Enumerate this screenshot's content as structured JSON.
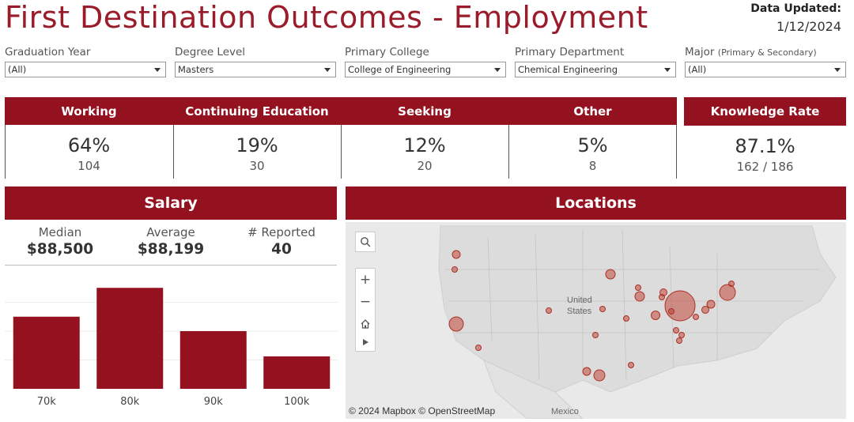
{
  "header": {
    "title": "First Destination Outcomes - Employment",
    "updated_label": "Data Updated:",
    "updated_date": "1/12/2024"
  },
  "filters": [
    {
      "label": "Graduation Year",
      "sub": "",
      "value": "(All)"
    },
    {
      "label": "Degree Level",
      "sub": "",
      "value": "Masters"
    },
    {
      "label": "Primary College",
      "sub": "",
      "value": "College of Engineering"
    },
    {
      "label": "Primary Department",
      "sub": "",
      "value": "Chemical Engineering"
    },
    {
      "label": "Major",
      "sub": "(Primary & Secondary)",
      "value": "(All)"
    }
  ],
  "kpis": [
    {
      "label": "Working",
      "pct": "64%",
      "count": "104"
    },
    {
      "label": "Continuing Education",
      "pct": "19%",
      "count": "30"
    },
    {
      "label": "Seeking",
      "pct": "12%",
      "count": "20"
    },
    {
      "label": "Other",
      "pct": "5%",
      "count": "8"
    }
  ],
  "knowledge": {
    "label": "Knowledge Rate",
    "pct": "87.1%",
    "count": "162 / 186"
  },
  "salary": {
    "title": "Salary",
    "stats": [
      {
        "label": "Median",
        "value": "$88,500"
      },
      {
        "label": "Average",
        "value": "$88,199"
      },
      {
        "label": "# Reported",
        "value": "40"
      }
    ]
  },
  "chart_data": {
    "type": "bar",
    "title": "",
    "xlabel": "",
    "ylabel": "",
    "categories": [
      "70k",
      "80k",
      "90k",
      "100k"
    ],
    "values": [
      10,
      14,
      8,
      4.5
    ],
    "ylim": [
      0,
      16
    ],
    "grid": true,
    "bar_color": "#941120"
  },
  "locations": {
    "title": "Locations",
    "credit": "© 2024 Mapbox  © OpenStreetMap",
    "country_label": "United States",
    "country_line1": "United",
    "country_line2": "States",
    "mexico_label": "Mexico",
    "marker_color": "#c0392b"
  },
  "colors": {
    "accent": "#941120",
    "title": "#9a1b2a"
  }
}
